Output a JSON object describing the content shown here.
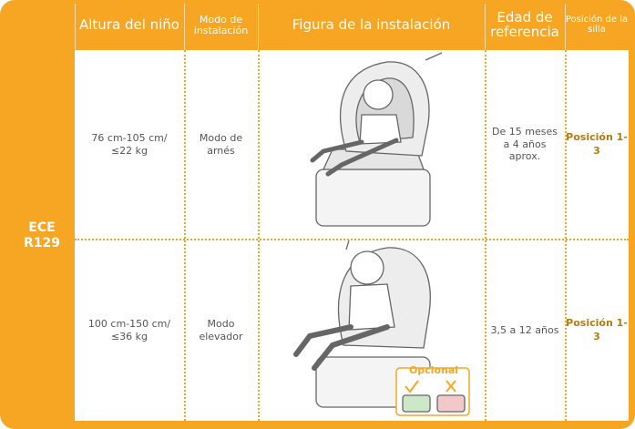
{
  "table": {
    "side_label": "ECE R129",
    "headers": [
      "Altura del niño",
      "Modo de instalación",
      "Figura de la instalación",
      "Edad de referencia",
      "Posición de la silla"
    ],
    "rows": [
      [
        "76 cm-105 cm/ ≤22 kg",
        "Modo de arnés",
        "De 15 meses a 4 años aprox.",
        "Posición 1-3"
      ],
      [
        "100 cm-150 cm/ ≤36 kg",
        "Modo elevador",
        "3,5 a 12 años",
        "Posición 1-3"
      ]
    ]
  },
  "figure": {
    "optional_label": "Opcional"
  }
}
